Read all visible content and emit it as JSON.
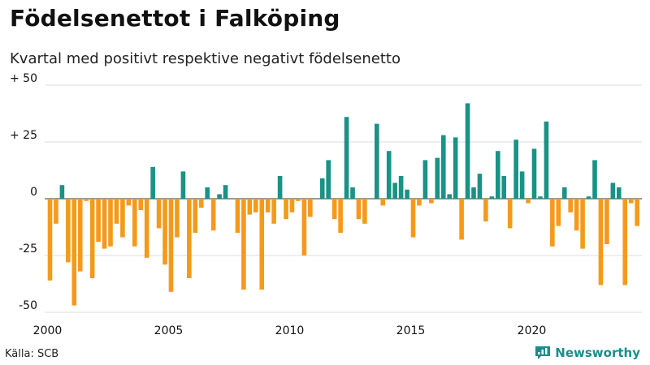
{
  "title": "Födelsenettot i Falköping",
  "subtitle": "Kvartal med positivt respektive negativt födelsenetto",
  "source": "Källa: SCB",
  "brand": "Newsworthy",
  "colors": {
    "positive": "#1a9285",
    "negative": "#f49a1b",
    "grid": "#dddddd",
    "axis": "#333333"
  },
  "chart_data": {
    "type": "bar",
    "title": "Födelsenettot i Falköping",
    "subtitle": "Kvartal med positivt respektive negativt födelsenetto",
    "x_start": "2000-Q1",
    "x_ticks": [
      "2000",
      "2005",
      "2010",
      "2015",
      "2020"
    ],
    "y_ticks": [
      "+ 50",
      "+ 25",
      "0",
      "-25",
      "-50"
    ],
    "ylim": [
      -50,
      50
    ],
    "y_tick_values": [
      50,
      25,
      0,
      -25,
      -50
    ],
    "grid": true,
    "legend": "none",
    "values": [
      -36,
      -11,
      6,
      -28,
      -47,
      -32,
      -1,
      -35,
      -19,
      -22,
      -21,
      -11,
      -17,
      -3,
      -21,
      -5,
      -26,
      14,
      -13,
      -29,
      -41,
      -17,
      12,
      -35,
      -15,
      -4,
      5,
      -14,
      2,
      6,
      0,
      -15,
      -40,
      -7,
      -6,
      -40,
      -6,
      -11,
      10,
      -9,
      -6,
      -1,
      -25,
      -8,
      0,
      9,
      17,
      -9,
      -15,
      36,
      5,
      -9,
      -11,
      0,
      33,
      -3,
      21,
      7,
      10,
      4,
      -17,
      -3,
      17,
      -2,
      18,
      28,
      2,
      27,
      -18,
      42,
      5,
      11,
      -10,
      1,
      21,
      10,
      -13,
      26,
      12,
      -2,
      22,
      1,
      34,
      -21,
      -12,
      5,
      -6,
      -14,
      -22,
      1,
      17,
      -38,
      -20,
      7,
      5,
      -38,
      -2,
      -12
    ]
  }
}
